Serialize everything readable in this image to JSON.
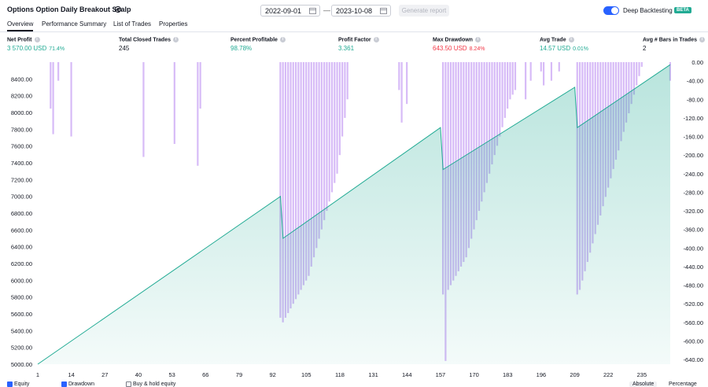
{
  "header": {
    "title": "Options Option Daily Breakout Scalp",
    "date_from": "2022-09-01",
    "date_to": "2023-10-08",
    "separator": "—",
    "generate_label": "Generate report",
    "deep_label": "Deep Backtesting",
    "beta_label": "BETA",
    "deep_enabled": true
  },
  "tabs": [
    {
      "label": "Overview",
      "active": true
    },
    {
      "label": "Performance Summary",
      "active": false
    },
    {
      "label": "List of Trades",
      "active": false
    },
    {
      "label": "Properties",
      "active": false
    }
  ],
  "stats": {
    "net_profit": {
      "label": "Net Profit",
      "value": "3 570.00 USD",
      "pct": "71.4%"
    },
    "total_closed": {
      "label": "Total Closed Trades",
      "value": "245"
    },
    "pct_profitable": {
      "label": "Percent Profitable",
      "value": "98.78%"
    },
    "profit_factor": {
      "label": "Profit Factor",
      "value": "3.361"
    },
    "max_drawdown": {
      "label": "Max Drawdown",
      "value": "643.50 USD",
      "pct": "8.24%"
    },
    "avg_trade": {
      "label": "Avg Trade",
      "value": "14.57 USD",
      "pct": "0.01%"
    },
    "avg_bars": {
      "label": "Avg # Bars in Trades",
      "value": "2"
    }
  },
  "chart_data": {
    "type": "area",
    "x_ticks": [
      1,
      14,
      27,
      40,
      53,
      66,
      79,
      92,
      105,
      118,
      131,
      144,
      157,
      170,
      183,
      196,
      209,
      222,
      235
    ],
    "y_left_ticks": [
      5000.0,
      5200.0,
      5400.0,
      5600.0,
      5800.0,
      6000.0,
      6200.0,
      6400.0,
      6600.0,
      6800.0,
      7000.0,
      7200.0,
      7400.0,
      7600.0,
      7800.0,
      8000.0,
      8200.0,
      8400.0
    ],
    "y_right_ticks": [
      0.0,
      -40.0,
      -80.0,
      -120.0,
      -160.0,
      -200.0,
      -240.0,
      -280.0,
      -320.0,
      -360.0,
      -400.0,
      -440.0,
      -480.0,
      -520.0,
      -560.0,
      -600.0,
      -640.0
    ],
    "equity": {
      "name": "Equity",
      "x": [
        1,
        95,
        96,
        157,
        158,
        209,
        210,
        246
      ],
      "y": [
        5000,
        7000,
        6500,
        7820,
        7320,
        8300,
        7820,
        8570
      ]
    },
    "drawdown": {
      "name": "Drawdown",
      "x": [
        6,
        7,
        9,
        14,
        42,
        54,
        63,
        64,
        95,
        96,
        97,
        98,
        99,
        100,
        101,
        102,
        103,
        104,
        105,
        106,
        107,
        108,
        109,
        110,
        111,
        112,
        113,
        114,
        115,
        116,
        117,
        118,
        119,
        120,
        121,
        141,
        142,
        144,
        158,
        159,
        160,
        161,
        162,
        163,
        164,
        165,
        166,
        167,
        168,
        169,
        170,
        171,
        172,
        173,
        174,
        175,
        176,
        177,
        178,
        179,
        180,
        181,
        182,
        183,
        184,
        185,
        186,
        190,
        192,
        196,
        197,
        200,
        203,
        210,
        211,
        212,
        213,
        214,
        215,
        216,
        217,
        218,
        219,
        220,
        221,
        222,
        223,
        224,
        225,
        226,
        227,
        228,
        229,
        230,
        231,
        232,
        233,
        234,
        235,
        246
      ],
      "y": [
        -100,
        -155,
        -40,
        -160,
        -204,
        -176,
        -223,
        -100,
        -550,
        -560,
        -550,
        -540,
        -530,
        -520,
        -510,
        -500,
        -490,
        -480,
        -470,
        -460,
        -440,
        -420,
        -400,
        -380,
        -360,
        -340,
        -320,
        -300,
        -280,
        -260,
        -240,
        -200,
        -160,
        -120,
        -80,
        -60,
        -130,
        -90,
        -500,
        -643,
        -490,
        -480,
        -470,
        -460,
        -450,
        -440,
        -430,
        -420,
        -400,
        -380,
        -360,
        -340,
        -320,
        -300,
        -280,
        -260,
        -240,
        -220,
        -200,
        -180,
        -160,
        -140,
        -120,
        -100,
        -80,
        -70,
        -60,
        -80,
        -40,
        -20,
        -50,
        -40,
        -20,
        -500,
        -490,
        -470,
        -450,
        -430,
        -410,
        -390,
        -370,
        -350,
        -330,
        -310,
        -290,
        -270,
        -250,
        -230,
        -210,
        -190,
        -170,
        -150,
        -130,
        -110,
        -90,
        -70,
        -50,
        -30,
        -10,
        -40
      ],
      "ylim": [
        -650,
        0
      ]
    },
    "ylim_left": [
      5000,
      8600
    ],
    "xlim": [
      1,
      246
    ]
  },
  "bottom": {
    "equity_label": "Equity",
    "drawdown_label": "Drawdown",
    "buyhold_label": "Buy & hold equity",
    "absolute_label": "Absolute",
    "percentage_label": "Percentage"
  }
}
